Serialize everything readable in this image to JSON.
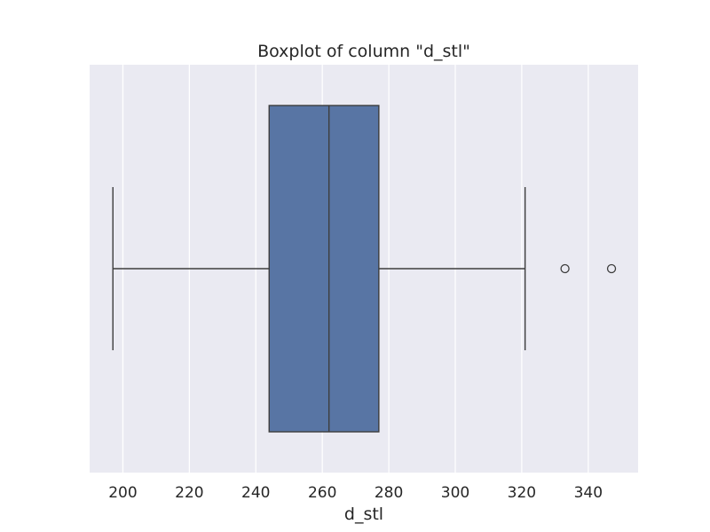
{
  "chart_data": {
    "type": "boxplot",
    "title": "Boxplot of column \"d_stl\"",
    "xlabel": "d_stl",
    "ylabel": "",
    "orientation": "horizontal",
    "xlim": [
      190,
      355
    ],
    "xticks": [
      200,
      220,
      240,
      260,
      280,
      300,
      320,
      340
    ],
    "grid": true,
    "box": {
      "whisker_low": 197,
      "q1": 244,
      "median": 262,
      "q3": 277,
      "whisker_high": 321,
      "outliers": [
        333,
        347
      ]
    },
    "colors": {
      "background": "#eaeaf2",
      "grid": "#ffffff",
      "box_fill": "#5875a4",
      "line": "#3d3d3d"
    }
  }
}
